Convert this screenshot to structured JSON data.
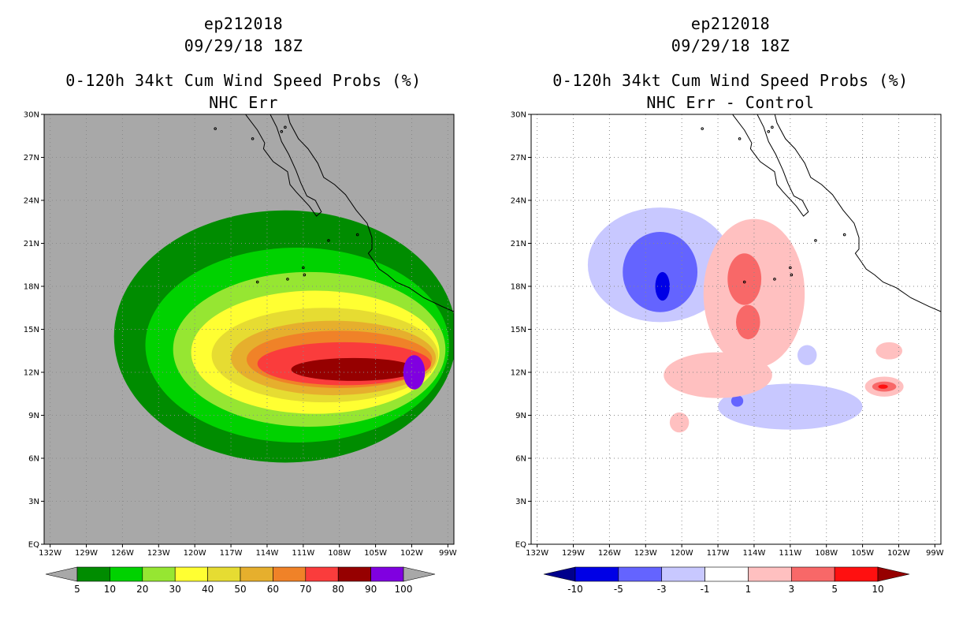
{
  "charts": {
    "left": {
      "storm_id": "ep212018",
      "datetime": "09/29/18 18Z",
      "title": "0-120h 34kt Cum Wind Speed Probs (%)",
      "subtitle": "NHC Err"
    },
    "right": {
      "storm_id": "ep212018",
      "datetime": "09/29/18 18Z",
      "title": "0-120h 34kt Cum Wind Speed Probs (%)",
      "subtitle": "NHC Err - Control"
    }
  },
  "chart_data": [
    {
      "type": "heatmap",
      "title": "0-120h 34kt Cum Wind Speed Probs (%)",
      "subtitle": "NHC Err",
      "x_ticks": [
        "132W",
        "129W",
        "126W",
        "123W",
        "120W",
        "117W",
        "114W",
        "111W",
        "108W",
        "105W",
        "102W",
        "99W"
      ],
      "x_values": [
        -132,
        -129,
        -126,
        -123,
        -120,
        -117,
        -114,
        -111,
        -108,
        -105,
        -102,
        -99
      ],
      "y_ticks": [
        "EQ",
        "3N",
        "6N",
        "9N",
        "12N",
        "15N",
        "18N",
        "21N",
        "24N",
        "27N",
        "30N"
      ],
      "y_values": [
        0,
        3,
        6,
        9,
        12,
        15,
        18,
        21,
        24,
        27,
        30
      ],
      "xlim": [
        -132.5,
        -98.5
      ],
      "ylim": [
        0,
        30
      ],
      "background_color": "#a8a8a8",
      "colorbar": {
        "labels": [
          "5",
          "10",
          "20",
          "30",
          "40",
          "50",
          "60",
          "70",
          "80",
          "90",
          "100"
        ],
        "colors": [
          "#008c00",
          "#00d200",
          "#96e632",
          "#ffff32",
          "#e6dc32",
          "#e6af2d",
          "#f08228",
          "#fa3c3c",
          "#960000",
          "#8000e0"
        ],
        "extend_low": "#a8a8a8",
        "extend_high": "#a8a8a8"
      },
      "contours": [
        {
          "level": 5,
          "color": "#008c00",
          "center_lon": -112.5,
          "center_lat": 14.5,
          "rx": 14.2,
          "ry": 8.8
        },
        {
          "level": 10,
          "color": "#00d200",
          "center_lon": -111.5,
          "center_lat": 13.9,
          "rx": 12.6,
          "ry": 6.8
        },
        {
          "level": 20,
          "color": "#96e632",
          "center_lon": -110.5,
          "center_lat": 13.6,
          "rx": 11.3,
          "ry": 5.4
        },
        {
          "level": 30,
          "color": "#ffff32",
          "center_lon": -110.0,
          "center_lat": 13.4,
          "rx": 10.3,
          "ry": 4.3
        },
        {
          "level": 40,
          "color": "#e6dc32",
          "center_lon": -109.2,
          "center_lat": 13.2,
          "rx": 9.4,
          "ry": 3.3
        },
        {
          "level": 50,
          "color": "#e6af2d",
          "center_lon": -108.5,
          "center_lat": 13.0,
          "rx": 8.5,
          "ry": 2.6
        },
        {
          "level": 60,
          "color": "#f08228",
          "center_lon": -108.0,
          "center_lat": 12.9,
          "rx": 7.7,
          "ry": 2.0
        },
        {
          "level": 70,
          "color": "#fa3c3c",
          "center_lon": -107.6,
          "center_lat": 12.6,
          "rx": 7.2,
          "ry": 1.5
        },
        {
          "level": 80,
          "color": "#960000",
          "center_lon": -106.8,
          "center_lat": 12.2,
          "rx": 5.2,
          "ry": 0.8
        },
        {
          "level": 90,
          "color": "#8000e0",
          "center_lon": -101.8,
          "center_lat": 12.0,
          "rx": 0.9,
          "ry": 1.2
        }
      ]
    },
    {
      "type": "heatmap",
      "title": "0-120h 34kt Cum Wind Speed Probs (%)",
      "subtitle": "NHC Err - Control",
      "x_ticks": [
        "132W",
        "129W",
        "126W",
        "123W",
        "120W",
        "117W",
        "114W",
        "111W",
        "108W",
        "105W",
        "102W",
        "99W"
      ],
      "x_values": [
        -132,
        -129,
        -126,
        -123,
        -120,
        -117,
        -114,
        -111,
        -108,
        -105,
        -102,
        -99
      ],
      "y_ticks": [
        "EQ",
        "3N",
        "6N",
        "9N",
        "12N",
        "15N",
        "18N",
        "21N",
        "24N",
        "27N",
        "30N"
      ],
      "y_values": [
        0,
        3,
        6,
        9,
        12,
        15,
        18,
        21,
        24,
        27,
        30
      ],
      "xlim": [
        -132.5,
        -98.5
      ],
      "ylim": [
        0,
        30
      ],
      "background_color": "#ffffff",
      "colorbar": {
        "labels": [
          "-10",
          "-5",
          "-3",
          "-1",
          "1",
          "3",
          "5",
          "10"
        ],
        "colors": [
          "#0000e6",
          "#6464ff",
          "#c8c8ff",
          "#ffffff",
          "#ffc0c0",
          "#f86868",
          "#ff1010"
        ],
        "extend_low": "#00008c",
        "extend_high": "#960000"
      },
      "contours": [
        {
          "level": -1,
          "color": "#c8c8ff",
          "center_lon": -121.8,
          "center_lat": 19.5,
          "rx": 6.0,
          "ry": 4.0
        },
        {
          "level": -3,
          "color": "#6464ff",
          "center_lon": -121.8,
          "center_lat": 19.0,
          "rx": 3.1,
          "ry": 2.8
        },
        {
          "level": -5,
          "color": "#0000e6",
          "center_lon": -121.6,
          "center_lat": 18.0,
          "rx": 0.6,
          "ry": 1.0
        },
        {
          "level": -1,
          "color": "#c8c8ff",
          "center_lon": -111.0,
          "center_lat": 9.6,
          "rx": 6.0,
          "ry": 1.6
        },
        {
          "level": -3,
          "color": "#6464ff",
          "center_lon": -115.4,
          "center_lat": 10.0,
          "rx": 0.5,
          "ry": 0.4
        },
        {
          "level": -1,
          "color": "#c8c8ff",
          "center_lon": -109.6,
          "center_lat": 13.2,
          "rx": 0.8,
          "ry": 0.7
        },
        {
          "level": 1,
          "color": "#ffc0c0",
          "center_lon": -114.0,
          "center_lat": 17.5,
          "rx": 4.2,
          "ry": 5.2
        },
        {
          "level": 1,
          "color": "#ffc0c0",
          "center_lon": -117.0,
          "center_lat": 11.8,
          "rx": 4.5,
          "ry": 1.6
        },
        {
          "level": 1,
          "color": "#ffc0c0",
          "center_lon": -103.2,
          "center_lat": 11.0,
          "rx": 1.6,
          "ry": 0.7
        },
        {
          "level": 1,
          "color": "#ffc0c0",
          "center_lon": -102.8,
          "center_lat": 13.5,
          "rx": 1.1,
          "ry": 0.6
        },
        {
          "level": 1,
          "color": "#ffc0c0",
          "center_lon": -120.2,
          "center_lat": 8.5,
          "rx": 0.8,
          "ry": 0.7
        },
        {
          "level": 3,
          "color": "#f86868",
          "center_lon": -114.8,
          "center_lat": 18.5,
          "rx": 1.4,
          "ry": 1.8
        },
        {
          "level": 3,
          "color": "#f86868",
          "center_lon": -114.5,
          "center_lat": 15.5,
          "rx": 1.0,
          "ry": 1.2
        },
        {
          "level": 3,
          "color": "#f86868",
          "center_lon": -103.2,
          "center_lat": 11.0,
          "rx": 1.0,
          "ry": 0.35
        },
        {
          "level": 5,
          "color": "#ff1010",
          "center_lon": -103.3,
          "center_lat": 11.0,
          "rx": 0.4,
          "ry": 0.15
        }
      ]
    }
  ]
}
